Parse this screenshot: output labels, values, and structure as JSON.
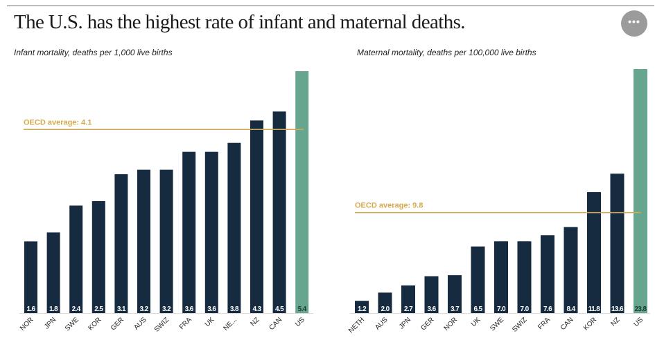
{
  "header": {
    "title": "The U.S. has the highest rate of infant and maternal deaths.",
    "more_button_label": "•••",
    "more_icon": "more-horizontal-icon"
  },
  "colors": {
    "bar": "#162a40",
    "highlight_bar": "#66a68f",
    "average_line": "#d4a94d",
    "label_text": "#ffffff",
    "highlight_label_text": "#1d3b2f",
    "axis": "#dddddd"
  },
  "chart_data": [
    {
      "type": "bar",
      "title": "Infant mortality, deaths per 1,000 live births",
      "xlabel": "",
      "ylabel": "",
      "categories": [
        "NOR",
        "JPN",
        "SWE",
        "KOR",
        "GER",
        "AUS",
        "SWIZ",
        "FRA",
        "UK",
        "NE...",
        "NZ",
        "CAN",
        "US"
      ],
      "values": [
        1.6,
        1.8,
        2.4,
        2.5,
        3.1,
        3.2,
        3.2,
        3.6,
        3.6,
        3.8,
        4.3,
        4.5,
        5.4
      ],
      "value_labels": [
        "1.6",
        "1.8",
        "2.4",
        "2.5",
        "3.1",
        "3.2",
        "3.2",
        "3.6",
        "3.6",
        "3.8",
        "4.3",
        "4.5",
        "5.4"
      ],
      "highlight": "US",
      "ylim": [
        0,
        5.4
      ],
      "grid": false,
      "reference_line": {
        "value": 4.1,
        "label": "OECD average: 4.1"
      }
    },
    {
      "type": "bar",
      "title": "Maternal mortality, deaths per 100,000 live births",
      "xlabel": "",
      "ylabel": "",
      "categories": [
        "NETH",
        "AUS",
        "JPN",
        "GER",
        "NOR",
        "UK",
        "SWE",
        "SWIZ",
        "FRA",
        "CAN",
        "KOR",
        "NZ",
        "US"
      ],
      "values": [
        1.2,
        2.0,
        2.7,
        3.6,
        3.7,
        6.5,
        7.0,
        7.0,
        7.6,
        8.4,
        11.8,
        13.6,
        23.8
      ],
      "value_labels": [
        "1.2",
        "2.0",
        "2.7",
        "3.6",
        "3.7",
        "6.5",
        "7.0",
        "7.0",
        "7.6",
        "8.4",
        "11.8",
        "13.6",
        "23.8"
      ],
      "highlight": "US",
      "ylim": [
        0,
        23.8
      ],
      "grid": false,
      "reference_line": {
        "value": 9.8,
        "label": "OECD average: 9.8"
      }
    }
  ]
}
